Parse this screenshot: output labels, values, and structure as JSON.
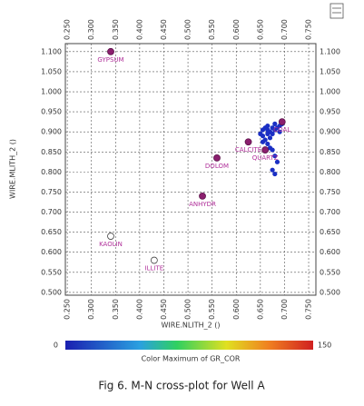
{
  "chart_data": {
    "type": "scatter",
    "x_label": "WIRE.NLITH_2 ()",
    "y_label": "WIRE.MLITH_2 ()",
    "xlim": [
      0.246,
      0.765
    ],
    "ylim": [
      0.493,
      1.12
    ],
    "xticks": [
      {
        "value": 0.25,
        "label": "0.250"
      },
      {
        "value": 0.3,
        "label": "0.300"
      },
      {
        "value": 0.35,
        "label": "0.350"
      },
      {
        "value": 0.4,
        "label": "0.400"
      },
      {
        "value": 0.45,
        "label": "0.450"
      },
      {
        "value": 0.5,
        "label": "0.500"
      },
      {
        "value": 0.55,
        "label": "0.550"
      },
      {
        "value": 0.6,
        "label": "0.600"
      },
      {
        "value": 0.65,
        "label": "0.650"
      },
      {
        "value": 0.7,
        "label": "0.700"
      },
      {
        "value": 0.75,
        "label": "0.750"
      }
    ],
    "yticks": [
      {
        "value": 0.5,
        "label": "0.500"
      },
      {
        "value": 0.55,
        "label": "0.550"
      },
      {
        "value": 0.6,
        "label": "0.600"
      },
      {
        "value": 0.65,
        "label": "0.650"
      },
      {
        "value": 0.7,
        "label": "0.700"
      },
      {
        "value": 0.75,
        "label": "0.750"
      },
      {
        "value": 0.8,
        "label": "0.800"
      },
      {
        "value": 0.85,
        "label": "0.850"
      },
      {
        "value": 0.9,
        "label": "0.900"
      },
      {
        "value": 0.95,
        "label": "0.950"
      },
      {
        "value": 1.0,
        "label": "1.000"
      },
      {
        "value": 1.05,
        "label": "1.050"
      },
      {
        "value": 1.1,
        "label": "1.100"
      }
    ],
    "grid": true,
    "color": "#1a2fc4",
    "x": [
      0.655,
      0.66,
      0.665,
      0.67,
      0.675,
      0.68,
      0.665,
      0.655,
      0.67,
      0.675,
      0.66,
      0.685,
      0.69,
      0.68,
      0.665,
      0.65,
      0.655,
      0.665,
      0.67,
      0.675,
      0.68,
      0.685,
      0.675,
      0.68,
      0.69,
      0.695
    ],
    "y": [
      0.905,
      0.91,
      0.915,
      0.9,
      0.91,
      0.905,
      0.895,
      0.89,
      0.885,
      0.895,
      0.88,
      0.91,
      0.915,
      0.92,
      0.905,
      0.895,
      0.875,
      0.87,
      0.86,
      0.855,
      0.84,
      0.825,
      0.805,
      0.795,
      0.9,
      0.92
    ],
    "annotations": [
      {
        "text": "GYPSUM",
        "x": 0.34,
        "y": 1.1,
        "fill": "#8b1f6e"
      },
      {
        "text": "KAOLIN",
        "x": 0.34,
        "y": 0.64,
        "fill": "none"
      },
      {
        "text": "ILLITE",
        "x": 0.43,
        "y": 0.58,
        "fill": "none"
      },
      {
        "text": "ANHYDR",
        "x": 0.53,
        "y": 0.74,
        "fill": "#8b1f6e"
      },
      {
        "text": "DOLOM",
        "x": 0.56,
        "y": 0.835,
        "fill": "#8b1f6e"
      },
      {
        "text": "CALCITE",
        "x": 0.625,
        "y": 0.875,
        "fill": "#8b1f6e"
      },
      {
        "text": "QUARTZ",
        "x": 0.66,
        "y": 0.855,
        "fill": "#8b1f6e"
      },
      {
        "text": "COAL",
        "x": 0.695,
        "y": 0.925,
        "fill": "#8b1f6e"
      }
    ],
    "colorbar": {
      "min": 0,
      "max": 150,
      "label": "Color  Maximum of GR_COR"
    },
    "caption": "Fig 6. M-N cross-plot for Well A"
  }
}
